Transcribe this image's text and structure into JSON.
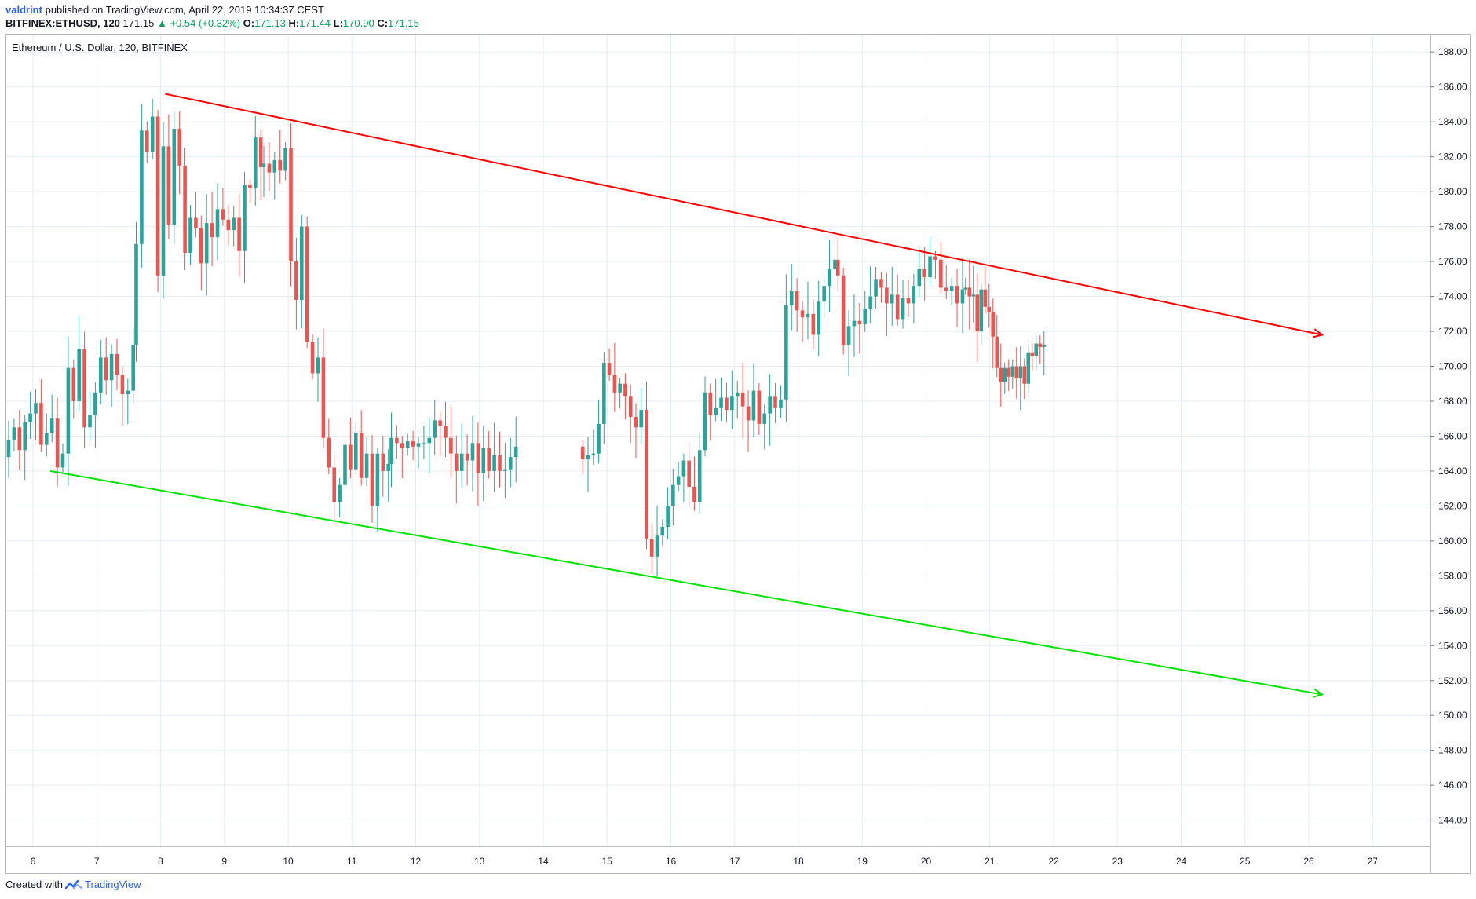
{
  "header": {
    "user": "valdrint",
    "published": "published on TradingView.com, April 22, 2019 10:34:37 CEST"
  },
  "symbol_line": {
    "symbol": "BITFINEX:ETHUSD, 120",
    "last": "171.15",
    "change_arrow": "▲",
    "change": "+0.54 (+0.32%)",
    "o_label": "O:",
    "o_value": "171.13",
    "h_label": "H:",
    "h_value": "171.44",
    "l_label": "L:",
    "l_value": "170.90",
    "c_label": "C:",
    "c_value": "171.15"
  },
  "series_title": "Ethereum / U.S. Dollar, 120, BITFINEX",
  "footer": {
    "created_with": "Created with",
    "brand": "TradingView",
    "logo_icon": "tradingview-logo-icon"
  },
  "colors": {
    "up": "#26a69a",
    "down": "#ef5350",
    "resistance": "#ff0000",
    "support": "#00e400",
    "grid": "#e6eef3"
  },
  "chart_data": {
    "type": "candlestick",
    "title": "Ethereum / U.S. Dollar, 120, BITFINEX",
    "ylim": [
      142.5,
      189
    ],
    "grid": true,
    "x_ticks": [
      "6",
      "7",
      "8",
      "9",
      "10",
      "11",
      "12",
      "13",
      "14",
      "15",
      "16",
      "17",
      "18",
      "19",
      "20",
      "21",
      "22",
      "23",
      "24",
      "25",
      "26",
      "27"
    ],
    "y_ticks": [
      "144.00",
      "146.00",
      "148.00",
      "150.00",
      "152.00",
      "154.00",
      "156.00",
      "158.00",
      "160.00",
      "162.00",
      "164.00",
      "166.00",
      "168.00",
      "170.00",
      "172.00",
      "174.00",
      "176.00",
      "178.00",
      "180.00",
      "182.00",
      "184.00",
      "186.00",
      "188.00"
    ],
    "candle_groups": [
      {
        "close": [
          165.8,
          166.5,
          165.2,
          166.8,
          167.3,
          167.9,
          165.5,
          166.2,
          167.0,
          164.2,
          165.0,
          169.9,
          168.0,
          171.0,
          166.5,
          167.2,
          168.5,
          170.5,
          169.2,
          170.7,
          169.5,
          168.4,
          168.6,
          171.2
        ]
      },
      {
        "close": [
          177.0,
          183.5,
          182.3,
          184.3,
          175.2,
          182.6,
          178.1,
          183.6,
          181.5,
          176.5,
          178.5,
          177.9,
          175.9,
          178.2,
          177.4,
          179.0,
          178.4,
          177.8,
          178.5,
          176.6,
          180.4,
          180.2,
          183.1,
          181.4
        ]
      },
      {
        "close": [
          181.6,
          181.1,
          181.8,
          181.2,
          182.5,
          176.0,
          173.8,
          178.0,
          171.4,
          169.6,
          170.5,
          165.9,
          164.2,
          162.2,
          163.2,
          165.5,
          164.1,
          166.2,
          163.6,
          165.0,
          162.0,
          165.0,
          164.0,
          164.4
        ]
      },
      {
        "close": [
          165.9,
          165.6,
          165.3,
          165.7,
          165.4,
          165.6,
          165.6,
          165.9,
          166.9,
          166.6,
          165.9,
          165.0,
          164.0,
          165.0,
          164.6,
          165.6,
          163.9,
          165.3,
          164.0,
          164.9,
          164.0,
          164.1,
          164.8,
          165.4
        ]
      },
      {
        "close": [
          164.7,
          164.9,
          165.0,
          166.7,
          170.2,
          169.5,
          168.5,
          169.0,
          168.3,
          167.1,
          166.5,
          167.5,
          160.1,
          159.1,
          160.3,
          160.8,
          162.0,
          163.2,
          163.7,
          164.6,
          163.1,
          162.2,
          165.2,
          168.5
        ]
      },
      {
        "close": [
          167.2,
          167.6,
          168.2,
          167.5,
          168.3,
          168.5,
          167.7,
          166.9,
          168.6,
          166.7,
          167.3,
          168.3,
          167.6,
          168.1,
          173.5,
          174.3,
          173.2,
          172.8,
          173.0,
          171.8,
          173.7,
          174.6,
          175.6,
          176.1
        ]
      },
      {
        "close": [
          175.2,
          171.2,
          172.3,
          172.6,
          172.4,
          173.3,
          174.0,
          175.0,
          174.5,
          173.6,
          174.1,
          172.7,
          173.9,
          173.6,
          174.6,
          175.6,
          175.1,
          176.3,
          176.1,
          174.5,
          174.3,
          174.6,
          173.6,
          174.4
        ]
      },
      {
        "close": [
          174.5,
          174.0,
          174.1,
          172.0,
          174.4,
          173.4,
          173.1,
          171.7,
          169.9,
          169.1,
          169.9,
          169.4,
          170.0,
          169.3,
          170.0,
          169.0,
          170.8,
          170.6,
          171.3,
          171.1,
          171.2
        ]
      }
    ],
    "trendlines": [
      {
        "name": "resistance",
        "from": {
          "x_tick": "8",
          "price": 185.6
        },
        "to": {
          "x_tick": "26",
          "price": 171.8
        },
        "arrow": true
      },
      {
        "name": "support",
        "from": {
          "x_tick": "6",
          "price": 164.0
        },
        "to": {
          "x_tick": "26",
          "price": 151.2
        },
        "arrow": true
      }
    ]
  }
}
